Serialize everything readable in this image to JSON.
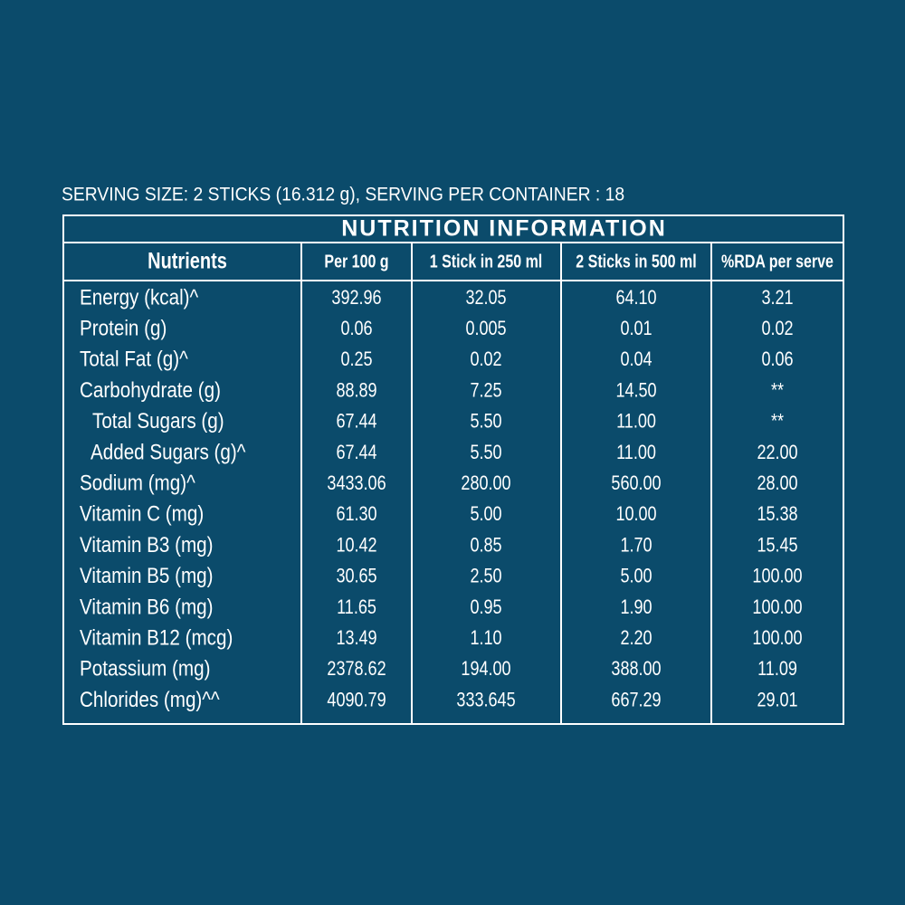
{
  "serving": "SERVING SIZE: 2 STICKS (16.312 g), SERVING PER CONTAINER : 18",
  "table": {
    "title": "NUTRITION INFORMATION",
    "header": [
      "Nutrients",
      "Per 100 g",
      "1 Stick in 250 ml",
      "2 Sticks in 500 ml",
      "%RDA per serve"
    ],
    "rows": [
      [
        "Energy (kcal)^",
        "392.96",
        "32.05",
        "64.10",
        "3.21"
      ],
      [
        "Protein (g)",
        "0.06",
        "0.005",
        "0.01",
        "0.02"
      ],
      [
        "Total Fat (g)^",
        "0.25",
        "0.02",
        "0.04",
        "0.06"
      ],
      [
        "Carbohydrate (g)",
        "88.89",
        "7.25",
        "14.50",
        "**"
      ],
      [
        "Total Sugars (g)",
        "67.44",
        "5.50",
        "11.00",
        "**"
      ],
      [
        "Added Sugars (g)^",
        "67.44",
        "5.50",
        "11.00",
        "22.00"
      ],
      [
        "Sodium (mg)^",
        "3433.06",
        "280.00",
        "560.00",
        "28.00"
      ],
      [
        "Vitamin C (mg)",
        "61.30",
        "5.00",
        "10.00",
        "15.38"
      ],
      [
        "Vitamin B3 (mg)",
        "10.42",
        "0.85",
        "1.70",
        "15.45"
      ],
      [
        "Vitamin B5 (mg)",
        "30.65",
        "2.50",
        "5.00",
        "100.00"
      ],
      [
        "Vitamin B6 (mg)",
        "11.65",
        "0.95",
        "1.90",
        "100.00"
      ],
      [
        "Vitamin B12 (mcg)",
        "13.49",
        "1.10",
        "2.20",
        "100.00"
      ],
      [
        "Potassium (mg)",
        "2378.62",
        "194.00",
        "388.00",
        "11.09"
      ],
      [
        "Chlorides (mg)^^",
        "4090.79",
        "333.645",
        "667.29",
        "29.01"
      ]
    ]
  }
}
